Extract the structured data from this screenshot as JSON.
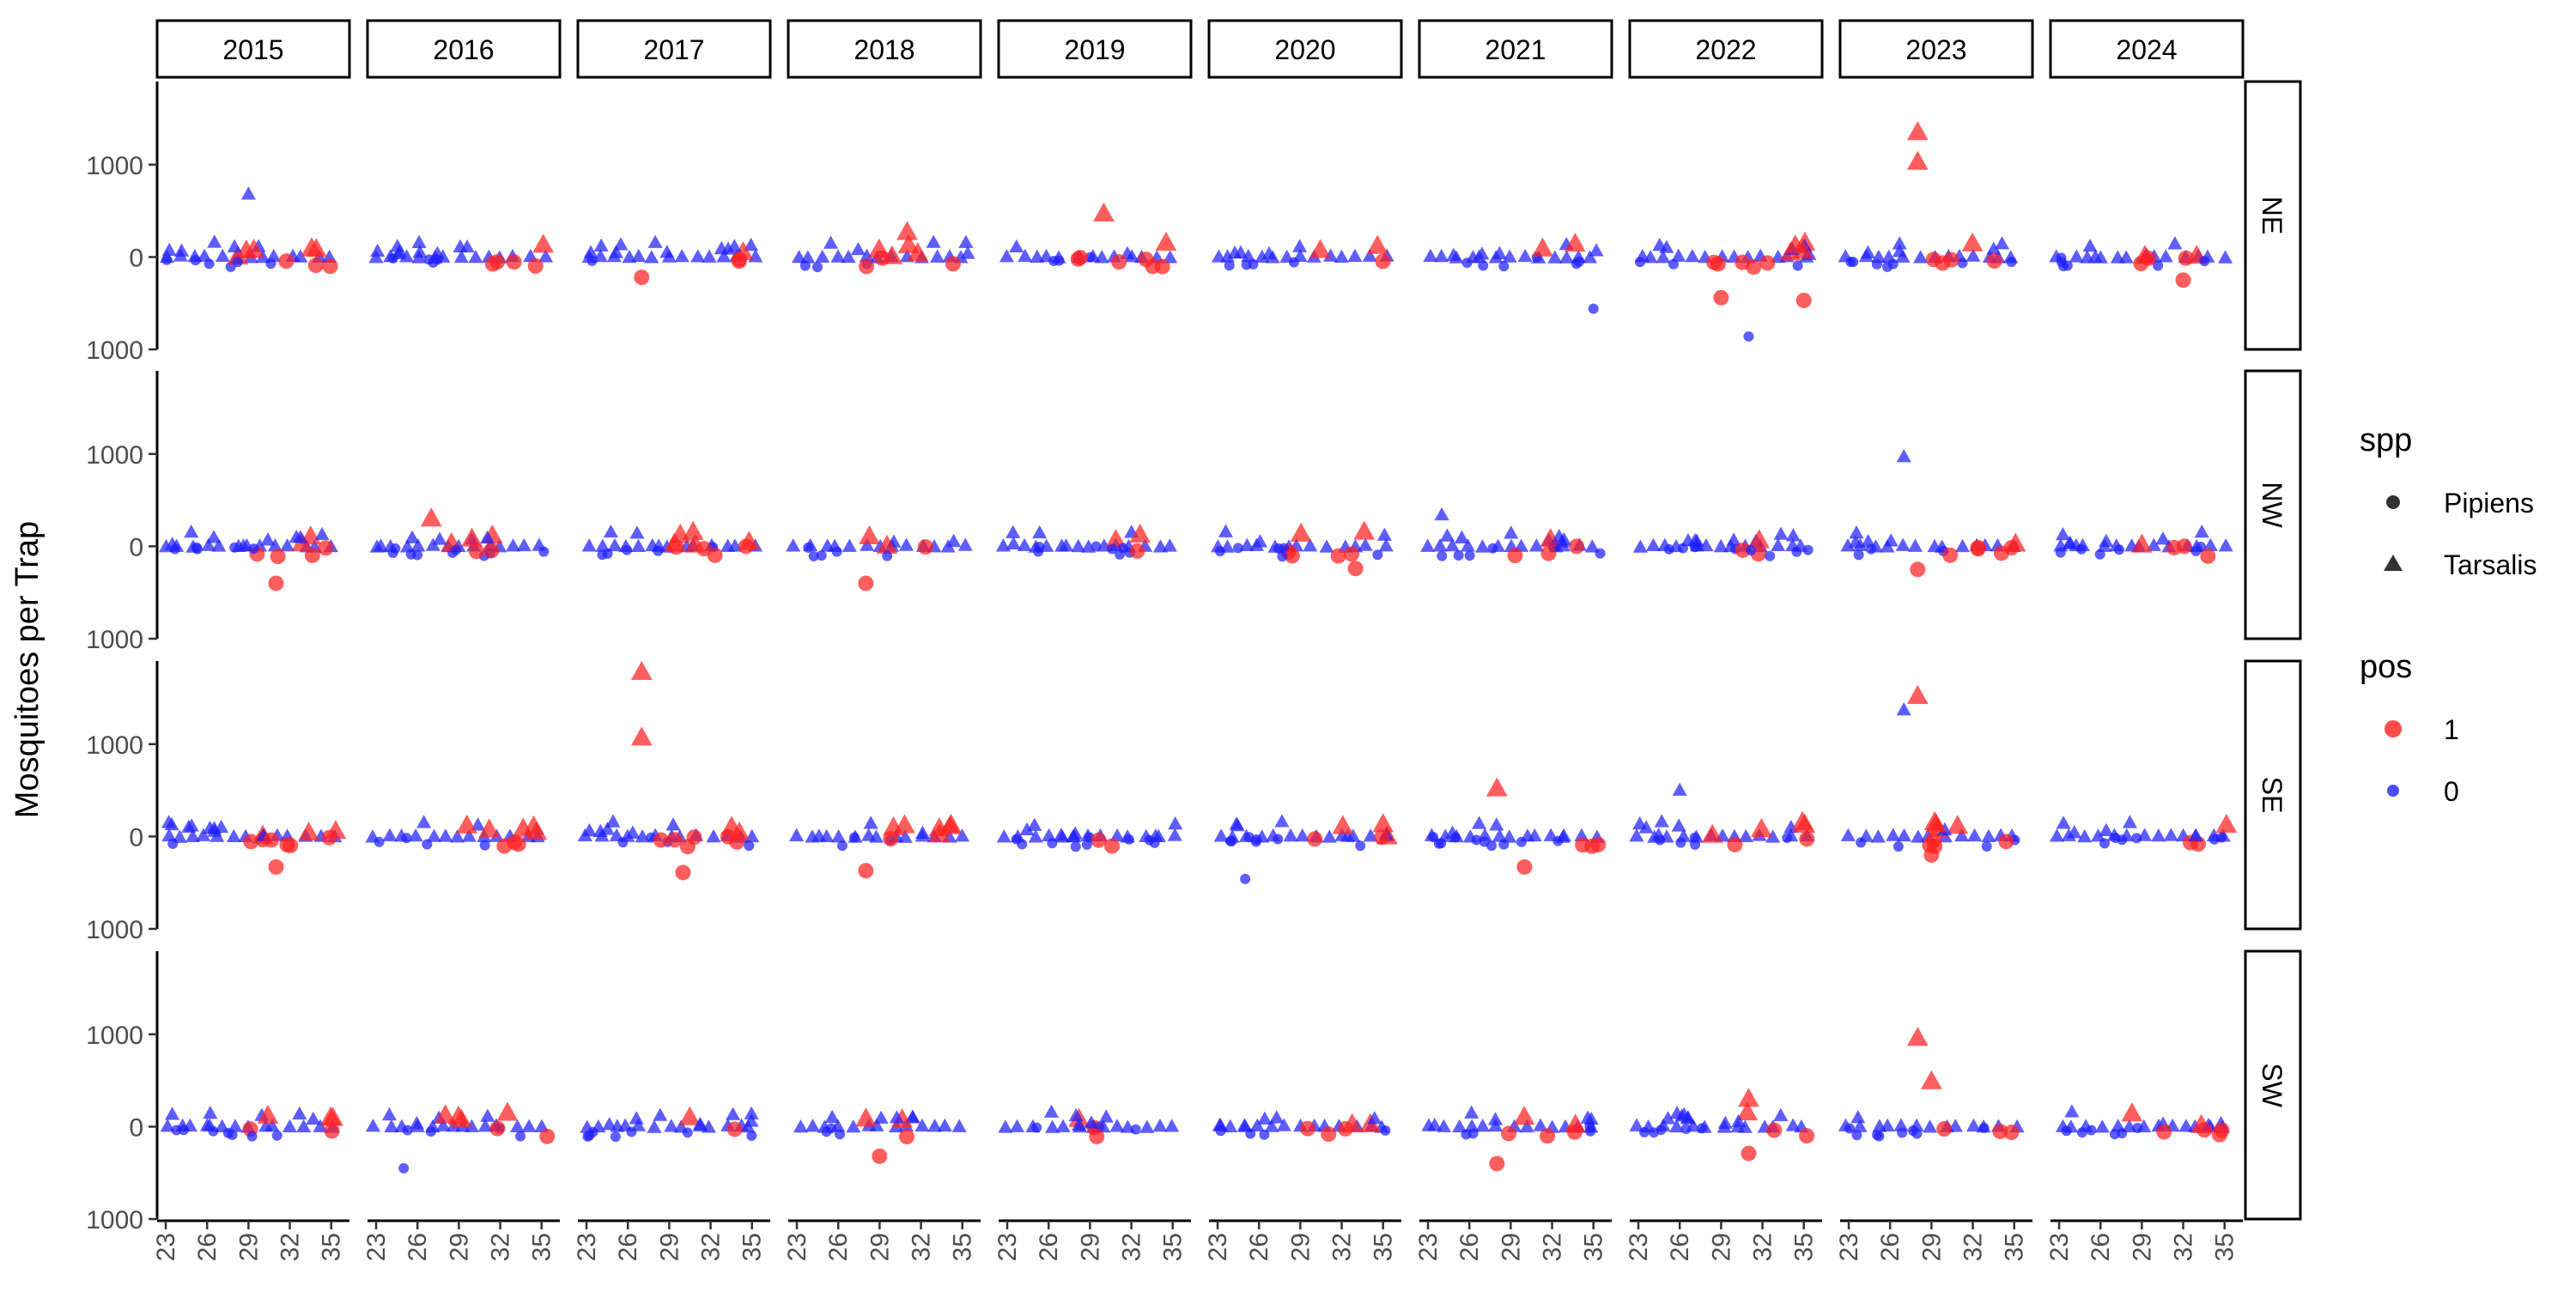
{
  "chart_data": {
    "type": "scatter",
    "facet_cols": [
      "2015",
      "2016",
      "2017",
      "2018",
      "2019",
      "2020",
      "2021",
      "2022",
      "2023",
      "2024"
    ],
    "facet_rows": [
      "NE",
      "NW",
      "SE",
      "SW"
    ],
    "ylabel": "Mosquitoes per Trap",
    "xlabel": "",
    "x_ticks": [
      23,
      26,
      29,
      32,
      35
    ],
    "y_ticks": [
      {
        "value": 1000,
        "label": "1000"
      },
      {
        "value": 0,
        "label": "0"
      },
      {
        "value": -1000,
        "label": "1000"
      }
    ],
    "ylim": [
      -1000,
      1900
    ],
    "xlim": [
      22.5,
      36.2
    ],
    "grid": false,
    "legends": [
      {
        "title": "spp",
        "entries": [
          {
            "label": "Pipiens",
            "shape": "circle"
          },
          {
            "label": "Tarsalis",
            "shape": "triangle"
          }
        ]
      },
      {
        "title": "pos",
        "entries": [
          {
            "label": "1",
            "color": "#FF2020"
          },
          {
            "label": "0",
            "color": "#2020FF"
          }
        ]
      }
    ],
    "legend_position": "right",
    "colors": {
      "pos1": "#FF2020",
      "pos0": "#2020FF"
    },
    "notable_points": [
      {
        "year": "2015",
        "region": "NE",
        "x": 29,
        "y": 680,
        "spp": "Tarsalis",
        "pos": "0"
      },
      {
        "year": "2017",
        "region": "NE",
        "x": 27,
        "y": -220,
        "spp": "Pipiens",
        "pos": "1"
      },
      {
        "year": "2018",
        "region": "NE",
        "x": 31,
        "y": 270,
        "spp": "Tarsalis",
        "pos": "1"
      },
      {
        "year": "2019",
        "region": "NE",
        "x": 30,
        "y": 470,
        "spp": "Tarsalis",
        "pos": "1"
      },
      {
        "year": "2021",
        "region": "NE",
        "x": 35,
        "y": -560,
        "spp": "Pipiens",
        "pos": "0"
      },
      {
        "year": "2022",
        "region": "NE",
        "x": 29,
        "y": -440,
        "spp": "Pipiens",
        "pos": "1"
      },
      {
        "year": "2022",
        "region": "NE",
        "x": 31,
        "y": -860,
        "spp": "Pipiens",
        "pos": "0"
      },
      {
        "year": "2022",
        "region": "NE",
        "x": 35,
        "y": -470,
        "spp": "Pipiens",
        "pos": "1"
      },
      {
        "year": "2023",
        "region": "NE",
        "x": 28,
        "y": 1350,
        "spp": "Tarsalis",
        "pos": "1"
      },
      {
        "year": "2023",
        "region": "NE",
        "x": 28,
        "y": 1030,
        "spp": "Tarsalis",
        "pos": "1"
      },
      {
        "year": "2024",
        "region": "NE",
        "x": 32,
        "y": -250,
        "spp": "Pipiens",
        "pos": "1"
      },
      {
        "year": "2015",
        "region": "NW",
        "x": 31,
        "y": -400,
        "spp": "Pipiens",
        "pos": "1"
      },
      {
        "year": "2016",
        "region": "NW",
        "x": 27,
        "y": 300,
        "spp": "Tarsalis",
        "pos": "1"
      },
      {
        "year": "2018",
        "region": "NW",
        "x": 28,
        "y": -400,
        "spp": "Pipiens",
        "pos": "1"
      },
      {
        "year": "2020",
        "region": "NW",
        "x": 33,
        "y": -240,
        "spp": "Pipiens",
        "pos": "1"
      },
      {
        "year": "2021",
        "region": "NW",
        "x": 24,
        "y": 340,
        "spp": "Tarsalis",
        "pos": "0"
      },
      {
        "year": "2023",
        "region": "NW",
        "x": 27,
        "y": 970,
        "spp": "Tarsalis",
        "pos": "0"
      },
      {
        "year": "2023",
        "region": "NW",
        "x": 28,
        "y": -250,
        "spp": "Pipiens",
        "pos": "1"
      },
      {
        "year": "2015",
        "region": "SE",
        "x": 31,
        "y": -330,
        "spp": "Pipiens",
        "pos": "1"
      },
      {
        "year": "2017",
        "region": "SE",
        "x": 27,
        "y": 1780,
        "spp": "Tarsalis",
        "pos": "1"
      },
      {
        "year": "2017",
        "region": "SE",
        "x": 27,
        "y": 1070,
        "spp": "Tarsalis",
        "pos": "1"
      },
      {
        "year": "2017",
        "region": "SE",
        "x": 30,
        "y": -390,
        "spp": "Pipiens",
        "pos": "1"
      },
      {
        "year": "2018",
        "region": "SE",
        "x": 28,
        "y": -370,
        "spp": "Pipiens",
        "pos": "1"
      },
      {
        "year": "2020",
        "region": "SE",
        "x": 25,
        "y": -460,
        "spp": "Pipiens",
        "pos": "0"
      },
      {
        "year": "2021",
        "region": "SE",
        "x": 28,
        "y": 520,
        "spp": "Tarsalis",
        "pos": "1"
      },
      {
        "year": "2021",
        "region": "SE",
        "x": 30,
        "y": -330,
        "spp": "Pipiens",
        "pos": "1"
      },
      {
        "year": "2022",
        "region": "SE",
        "x": 26,
        "y": 500,
        "spp": "Tarsalis",
        "pos": "0"
      },
      {
        "year": "2023",
        "region": "SE",
        "x": 28,
        "y": 1520,
        "spp": "Tarsalis",
        "pos": "1"
      },
      {
        "year": "2023",
        "region": "SE",
        "x": 27,
        "y": 1370,
        "spp": "Tarsalis",
        "pos": "0"
      },
      {
        "year": "2023",
        "region": "SE",
        "x": 29,
        "y": -200,
        "spp": "Pipiens",
        "pos": "1"
      },
      {
        "year": "2016",
        "region": "SW",
        "x": 25,
        "y": -450,
        "spp": "Pipiens",
        "pos": "0"
      },
      {
        "year": "2018",
        "region": "SW",
        "x": 29,
        "y": -320,
        "spp": "Pipiens",
        "pos": "1"
      },
      {
        "year": "2021",
        "region": "SW",
        "x": 28,
        "y": -400,
        "spp": "Pipiens",
        "pos": "1"
      },
      {
        "year": "2022",
        "region": "SW",
        "x": 31,
        "y": 300,
        "spp": "Tarsalis",
        "pos": "1"
      },
      {
        "year": "2022",
        "region": "SW",
        "x": 31,
        "y": -290,
        "spp": "Pipiens",
        "pos": "1"
      },
      {
        "year": "2023",
        "region": "SW",
        "x": 28,
        "y": 960,
        "spp": "Tarsalis",
        "pos": "1"
      },
      {
        "year": "2023",
        "region": "SW",
        "x": 29,
        "y": 490,
        "spp": "Tarsalis",
        "pos": "1"
      }
    ]
  }
}
